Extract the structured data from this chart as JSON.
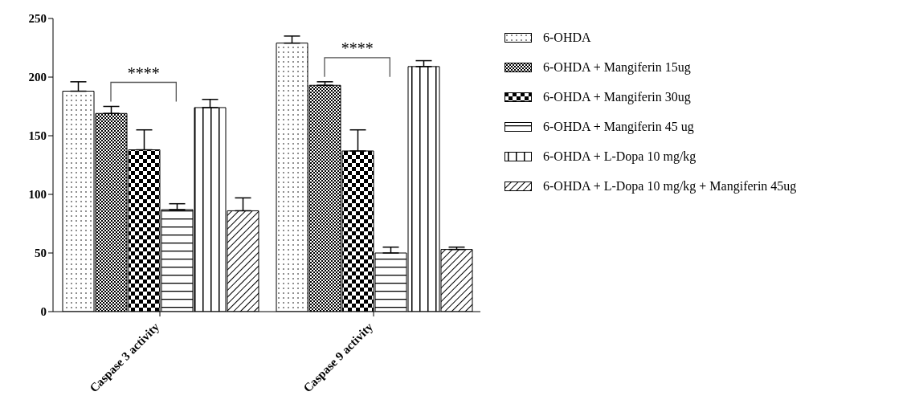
{
  "chart_data": {
    "type": "bar",
    "categories": [
      "Caspase 3 activity",
      "Caspase 9 activity"
    ],
    "series": [
      {
        "name": "6-OHDA",
        "color": "#000000",
        "values": [
          188,
          229
        ],
        "errors": [
          8,
          6
        ]
      },
      {
        "name": "6-OHDA + Mangiferin 15ug",
        "color": "#000000",
        "values": [
          169,
          193
        ],
        "errors": [
          6,
          3
        ]
      },
      {
        "name": "6-OHDA + Mangiferin 30ug",
        "color": "#000000",
        "values": [
          138,
          137
        ],
        "errors": [
          17,
          18
        ]
      },
      {
        "name": "6-OHDA + Mangiferin 45 ug",
        "color": "#000000",
        "values": [
          87,
          50
        ],
        "errors": [
          5,
          5
        ]
      },
      {
        "name": "6-OHDA + L-Dopa 10 mg/kg",
        "color": "#000000",
        "values": [
          174,
          209
        ],
        "errors": [
          7,
          5
        ]
      },
      {
        "name": "6-OHDA + L-Dopa 10 mg/kg + Mangiferin 45ug",
        "color": "#000000",
        "values": [
          86,
          53
        ],
        "errors": [
          11,
          2
        ]
      }
    ],
    "ylim": [
      0,
      250
    ],
    "yticks": [
      0,
      50,
      100,
      150,
      200,
      250
    ],
    "grid": false,
    "legend": "right",
    "annotations": [
      "****",
      "****"
    ]
  }
}
